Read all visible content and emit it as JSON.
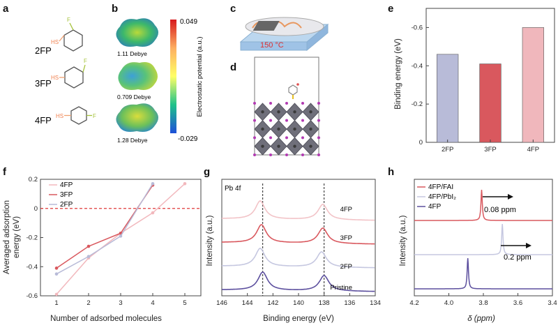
{
  "panels": {
    "a": {
      "label": "a",
      "molecules": [
        {
          "name": "2FP",
          "sh": "HS",
          "f": "F"
        },
        {
          "name": "3FP",
          "sh": "HS",
          "f": "F"
        },
        {
          "name": "4FP",
          "sh": "HS",
          "f": "F"
        }
      ]
    },
    "b": {
      "label": "b",
      "dipoles": [
        "1.11 Debye",
        "0.709 Debye",
        "1.28 Debye"
      ],
      "colorbar": {
        "max": "0.049",
        "min": "-0.029",
        "label": "Electrostatic potential (a.u.)"
      }
    },
    "c": {
      "label": "c",
      "temperature": "150 °C"
    },
    "d": {
      "label": "d"
    }
  },
  "chart_data": [
    {
      "id": "e",
      "type": "bar",
      "label": "e",
      "categories": [
        "2FP",
        "3FP",
        "4FP"
      ],
      "values": [
        -0.46,
        -0.41,
        -0.6
      ],
      "colors": [
        "#b8bbd8",
        "#d9585e",
        "#f0b7bc"
      ],
      "ylabel": "Binding energy (eV)",
      "yticks": [
        "-0.6",
        "-0.4",
        "-0.2",
        "0"
      ],
      "ylim": [
        0,
        -0.7
      ],
      "y_inverted": true
    },
    {
      "id": "f",
      "type": "line",
      "label": "f",
      "xlabel": "Number of adsorbed molecules",
      "ylabel": "Averaged adsorption energy (eV)",
      "xticks": [
        "1",
        "2",
        "3",
        "4",
        "5"
      ],
      "yticks": [
        "0.2",
        "0",
        "-0.2",
        "-0.4",
        "-0.6"
      ],
      "xlim": [
        0.5,
        5.5
      ],
      "ylim": [
        -0.6,
        0.2
      ],
      "zero_line": true,
      "series": [
        {
          "name": "4FP",
          "color": "#f2b8bd",
          "x": [
            1,
            2,
            3,
            4,
            5
          ],
          "y": [
            -0.59,
            -0.34,
            -0.17,
            -0.03,
            0.17
          ]
        },
        {
          "name": "3FP",
          "color": "#d9585e",
          "x": [
            1,
            2,
            3,
            4
          ],
          "y": [
            -0.41,
            -0.26,
            -0.17,
            0.16
          ]
        },
        {
          "name": "2FP",
          "color": "#b8bbd8",
          "x": [
            1,
            2,
            3,
            4
          ],
          "y": [
            -0.45,
            -0.33,
            -0.19,
            0.17
          ]
        }
      ]
    },
    {
      "id": "g",
      "type": "line",
      "label": "g",
      "title": "Pb 4f",
      "xlabel": "Binding energy (eV)",
      "ylabel": "Intensity (a.u.)",
      "xticks": [
        "146",
        "144",
        "142",
        "140",
        "138",
        "136",
        "134"
      ],
      "xlim": [
        146,
        134
      ],
      "dashed_lines": [
        142.8,
        138.0
      ],
      "series": [
        {
          "name": "4FP",
          "color": "#f2c3c7",
          "peaks": [
            143.0,
            138.1
          ],
          "offset": 3
        },
        {
          "name": "3FP",
          "color": "#d9585e",
          "peaks": [
            142.9,
            138.1
          ],
          "offset": 2
        },
        {
          "name": "2FP",
          "color": "#c5c7e0",
          "peaks": [
            143.0,
            138.2
          ],
          "offset": 1
        },
        {
          "name": "Pristine",
          "color": "#5c4f9e",
          "peaks": [
            142.8,
            138.0
          ],
          "offset": 0
        }
      ]
    },
    {
      "id": "h",
      "type": "line",
      "label": "h",
      "xlabel": "δ (ppm)",
      "ylabel": "Intensity (a.u.)",
      "xticks": [
        "4.2",
        "4.0",
        "3.8",
        "3.6",
        "3.4"
      ],
      "xlim": [
        4.2,
        3.4
      ],
      "legend": [
        "4FP/FAI",
        "4FP/PbI₂",
        "4FP"
      ],
      "series": [
        {
          "name": "4FP/FAI",
          "color": "#d9585e",
          "peak": 3.81,
          "offset": 2
        },
        {
          "name": "4FP/PbI₂",
          "color": "#c5c7e0",
          "peak": 3.69,
          "offset": 1
        },
        {
          "name": "4FP",
          "color": "#5c4f9e",
          "peak": 3.89,
          "offset": 0
        }
      ],
      "annotations": [
        "0.08 ppm",
        "0.2 ppm"
      ]
    }
  ]
}
